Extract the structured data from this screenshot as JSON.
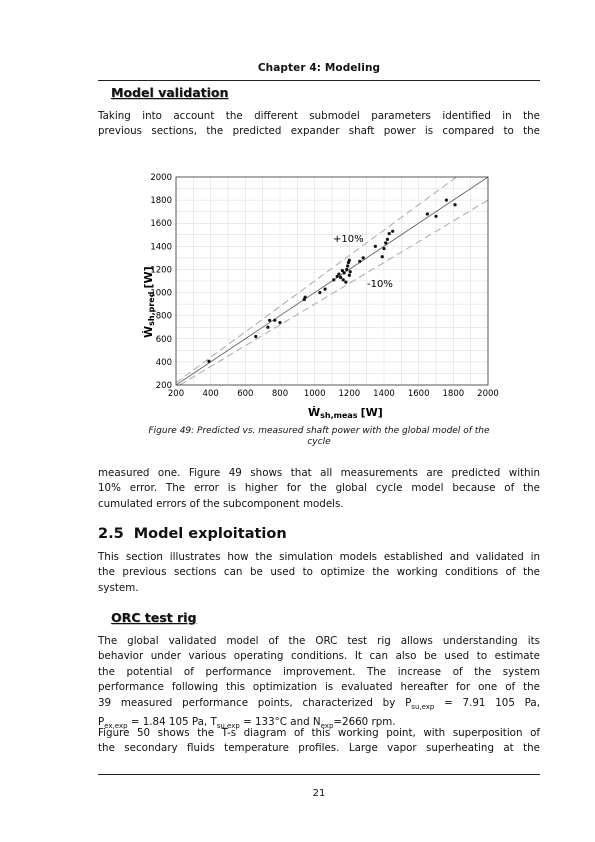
{
  "header": {
    "chapter": "Chapter 4: Modeling"
  },
  "section_validation": {
    "heading": "Model validation",
    "para1": [
      "Taking into account the different submodel parameters identified in the",
      "previous sections, the predicted expander shaft power is compared to the"
    ]
  },
  "figure": {
    "caption_line1": "Figure 49: Predicted vs. measured shaft power with the global model of the",
    "caption_line2": "cycle"
  },
  "chart_data": {
    "type": "scatter",
    "xlabel_main": "Ẇ",
    "xlabel_sub": "sh,meas",
    "xlabel_unit": "[W]",
    "ylabel_main": "Ẇ",
    "ylabel_sub": "sh,pred",
    "ylabel_unit": "[W]",
    "xlim": [
      200,
      2000
    ],
    "ylim": [
      200,
      2000
    ],
    "x_ticks": [
      "200",
      "400",
      "600",
      "800",
      "1000",
      "1200",
      "1400",
      "1600",
      "1800",
      "2000"
    ],
    "y_ticks": [
      "200",
      "400",
      "600",
      "800",
      "1000",
      "1200",
      "1400",
      "1600",
      "1800",
      "2000"
    ],
    "grid": true,
    "annotations": {
      "plus": "+10%",
      "minus": "-10%"
    },
    "reference_lines": [
      "y = x",
      "y = 1.1x",
      "y = 0.9x"
    ],
    "points": [
      [
        390,
        405
      ],
      [
        660,
        620
      ],
      [
        730,
        700
      ],
      [
        740,
        760
      ],
      [
        770,
        760
      ],
      [
        800,
        740
      ],
      [
        940,
        940
      ],
      [
        945,
        960
      ],
      [
        1030,
        1000
      ],
      [
        1060,
        1030
      ],
      [
        1110,
        1110
      ],
      [
        1130,
        1140
      ],
      [
        1140,
        1160
      ],
      [
        1150,
        1130
      ],
      [
        1160,
        1190
      ],
      [
        1165,
        1110
      ],
      [
        1170,
        1170
      ],
      [
        1180,
        1090
      ],
      [
        1185,
        1200
      ],
      [
        1190,
        1230
      ],
      [
        1195,
        1260
      ],
      [
        1200,
        1280
      ],
      [
        1200,
        1150
      ],
      [
        1205,
        1180
      ],
      [
        1260,
        1270
      ],
      [
        1280,
        1300
      ],
      [
        1350,
        1400
      ],
      [
        1390,
        1310
      ],
      [
        1400,
        1380
      ],
      [
        1410,
        1430
      ],
      [
        1420,
        1460
      ],
      [
        1430,
        1510
      ],
      [
        1450,
        1530
      ],
      [
        1650,
        1680
      ],
      [
        1700,
        1660
      ],
      [
        1760,
        1800
      ],
      [
        1810,
        1760
      ]
    ]
  },
  "body_after_figure": [
    "measured one. Figure 49 shows that all measurements are predicted within",
    "10% error.  The error is higher for the global cycle model because of the",
    "cumulated errors of the subcomponent models."
  ],
  "section_exploitation": {
    "number": "2.5",
    "title": "Model exploitation",
    "para": [
      "This section illustrates how the simulation models established and validated in",
      "the previous sections can be used to optimize the working conditions of the",
      "system."
    ]
  },
  "section_orc": {
    "heading": "ORC test rig",
    "para1": [
      "The global validated model of the ORC test rig allows understanding its",
      "behavior under various operating conditions. It can also be used to estimate",
      "the potential of performance improvement. The increase of the system",
      "performance following this optimization is evaluated hereafter for one of the"
    ],
    "line5_start": "39 measured performance points, characterized by P",
    "line5_sub": "su,exp",
    "line5_end": " = 7.91 105 Pa,",
    "line6_a": "P",
    "line6_a_sub": "ex,exp",
    "line6_b": " = 1.84 105 Pa, T",
    "line6_b_sub": "su,exp",
    "line6_c": " = 133°C and N",
    "line6_c_sub": "exp",
    "line6_d": "=2660 rpm.",
    "para2": [
      "Figure 50 shows the T-s diagram of this working point, with superposition of",
      "the secondary fluids temperature profiles. Large vapor superheating at the"
    ]
  },
  "footer": {
    "page": "21"
  }
}
